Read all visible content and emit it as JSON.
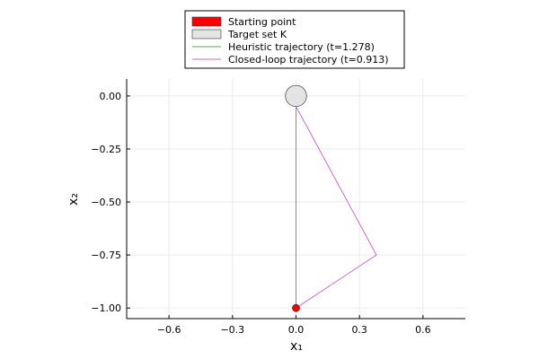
{
  "chart_data": {
    "type": "scatter",
    "xlabel": "x₁",
    "ylabel": "x₂",
    "xlim": [
      -0.8,
      0.8
    ],
    "ylim": [
      -1.05,
      0.08
    ],
    "xticks": [
      -0.6,
      -0.3,
      0.0,
      0.3,
      0.6
    ],
    "xtick_labels": [
      "−0.6",
      "−0.3",
      "0.0",
      "0.3",
      "0.6"
    ],
    "yticks": [
      0.0,
      -0.25,
      -0.5,
      -0.75,
      -1.0
    ],
    "ytick_labels": [
      "0.00",
      "−0.25",
      "−0.50",
      "−0.75",
      "−1.00"
    ],
    "grid": true,
    "legend_position": "top-center",
    "series": [
      {
        "name": "Starting point",
        "kind": "point",
        "color": "#ff0000",
        "points": [
          {
            "x": 0.0,
            "y": -1.0
          }
        ]
      },
      {
        "name": "Target set K",
        "kind": "disk",
        "color": "#e4e4e4",
        "center": {
          "x": 0.0,
          "y": 0.0
        },
        "radius": 0.05
      },
      {
        "name": "Heuristic trajectory (t=1.278)",
        "kind": "line",
        "color": "#5aa85a",
        "points": [
          {
            "x": 0.0,
            "y": -1.0
          },
          {
            "x": 0.0,
            "y": -0.05
          }
        ]
      },
      {
        "name": "Closed-loop trajectory (t=0.913)",
        "kind": "line",
        "color": "#cc66dd",
        "points": [
          {
            "x": 0.0,
            "y": -1.0
          },
          {
            "x": 0.38,
            "y": -0.75
          },
          {
            "x": 0.0,
            "y": -0.05
          }
        ]
      }
    ]
  }
}
